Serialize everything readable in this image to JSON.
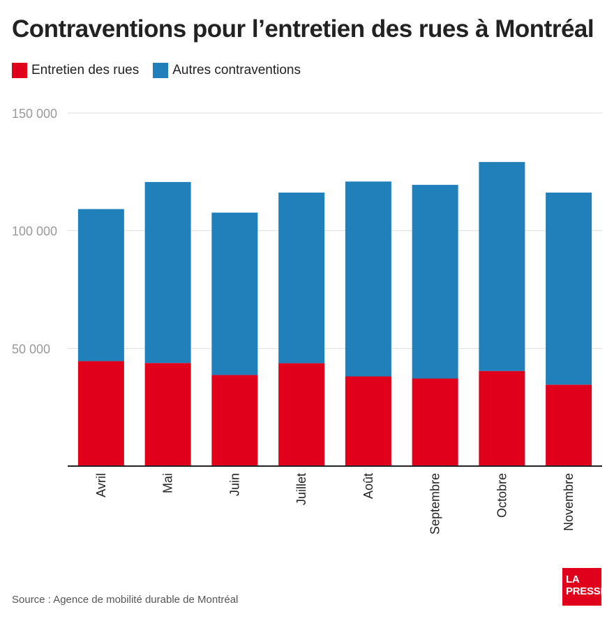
{
  "colors": {
    "street": "#e0001b",
    "other": "#2180b9",
    "grid": "#dddddd",
    "axis": "#222222",
    "tick_text": "#999999"
  },
  "legend": {
    "street_label": "Entretien des rues",
    "other_label": "Autres contraventions"
  },
  "source": "Source : Agence de mobilité durable de Montréal",
  "logo": {
    "line1": "LA",
    "line2": "PRESSE"
  },
  "chart_data": {
    "type": "bar",
    "stacked": true,
    "title": "Contraventions pour l’entretien des rues à Montréal",
    "xlabel": "",
    "ylabel": "",
    "ylim": [
      0,
      150000
    ],
    "yticks": [
      50000,
      100000,
      150000
    ],
    "ytick_labels": [
      "50 000",
      "100 000",
      "150 000"
    ],
    "categories": [
      "Avril",
      "Mai",
      "Juin",
      "Juillet",
      "Août",
      "Septembre",
      "Octobre",
      "Novembre"
    ],
    "series": [
      {
        "name": "Entretien des rues",
        "values": [
          44600,
          43800,
          38700,
          43700,
          38100,
          37200,
          40400,
          34600
        ]
      },
      {
        "name": "Autres contraventions",
        "values": [
          64600,
          76900,
          69000,
          72500,
          82800,
          82300,
          88800,
          81600
        ]
      }
    ],
    "legend_position": "top-left",
    "grid": true
  }
}
